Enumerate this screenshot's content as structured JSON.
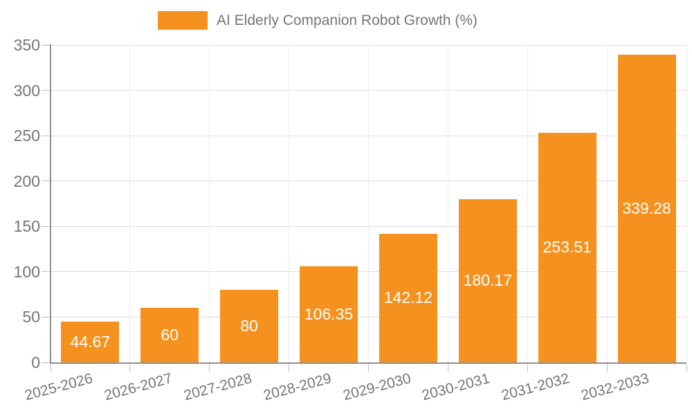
{
  "legend": {
    "label": "AI Elderly Companion Robot Growth (%)"
  },
  "chart_data": {
    "type": "bar",
    "title": "AI Elderly Companion Robot Growth (%)",
    "categories": [
      "2025-2026",
      "2026-2027",
      "2027-2028",
      "2028-2029",
      "2029-2030",
      "2030-2031",
      "2031-2032",
      "2032-2033"
    ],
    "values": [
      44.67,
      60,
      80,
      106.35,
      142.12,
      180.17,
      253.51,
      339.28
    ],
    "value_labels": [
      "44.67",
      "60",
      "80",
      "106.35",
      "142.12",
      "180.17",
      "253.51",
      "339.28"
    ],
    "xlabel": "",
    "ylabel": "",
    "ylim": [
      0,
      350
    ],
    "yticks": [
      0,
      50,
      100,
      150,
      200,
      250,
      300,
      350
    ],
    "grid": true,
    "legend_position": "top-center",
    "x_label_rotation_deg": -15,
    "colors": {
      "bar": "#f5921f",
      "bar_label": "#ffffff",
      "axis_line": "#8f8f8f",
      "tick": "#bdbdbd",
      "grid_h": "#dedede",
      "grid_v": "#ebebeb",
      "text": "#757575",
      "background": "#ffffff"
    }
  }
}
